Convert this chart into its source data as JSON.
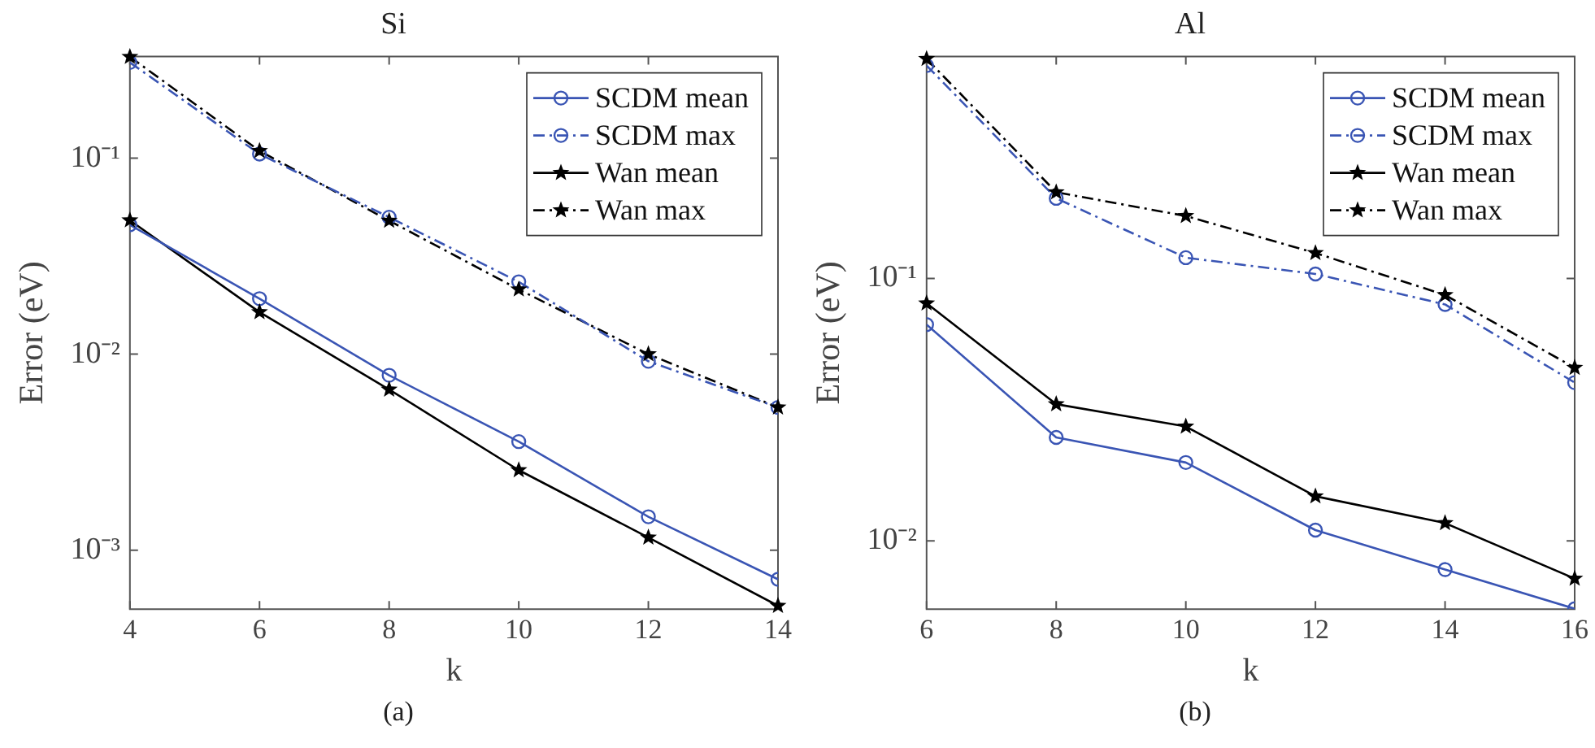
{
  "chart_data": [
    {
      "type": "line",
      "title": "Si",
      "xlabel": "k",
      "ylabel": "Error (eV)",
      "annotations": [
        "(a)"
      ],
      "x": [
        4,
        6,
        8,
        10,
        12,
        14
      ],
      "log": "y",
      "grid": false,
      "legend": "top right",
      "xlim": [
        4,
        14
      ],
      "xticks": [
        4,
        6,
        8,
        10,
        12,
        14
      ],
      "ylim": [
        0.0005,
        0.33
      ],
      "yticks": [
        {
          "value": 0.001,
          "label": "10⁻³"
        },
        {
          "value": 0.01,
          "label": "10⁻²"
        },
        {
          "value": 0.1,
          "label": "10⁻¹"
        }
      ],
      "series": [
        {
          "name": "SCDM mean",
          "color": "#3a55b4",
          "marker": "circle",
          "line_style": "solid",
          "values": [
            0.0457,
            0.0192,
            0.0078,
            0.00358,
            0.00148,
            0.00071
          ]
        },
        {
          "name": "SCDM max",
          "color": "#3a55b4",
          "marker": "circle",
          "line_style": "dashed",
          "values": [
            0.308,
            0.105,
            0.05,
            0.0234,
            0.0092,
            0.00535
          ]
        },
        {
          "name": "Wan mean",
          "color": "#000000",
          "marker": "star",
          "line_style": "solid",
          "values": [
            0.0482,
            0.0164,
            0.0066,
            0.00256,
            0.00116,
            0.00052
          ]
        },
        {
          "name": "Wan max",
          "color": "#000000",
          "marker": "star",
          "line_style": "dashed",
          "values": [
            0.329,
            0.109,
            0.048,
            0.0214,
            0.01,
            0.00535
          ]
        }
      ]
    },
    {
      "type": "line",
      "title": "Al",
      "xlabel": "k",
      "ylabel": "Error (eV)",
      "annotations": [
        "(b)"
      ],
      "x": [
        6,
        8,
        10,
        12,
        14,
        16
      ],
      "log": "y",
      "grid": false,
      "legend": "top right",
      "xlim": [
        6,
        16
      ],
      "xticks": [
        6,
        8,
        10,
        12,
        14,
        16
      ],
      "ylim": [
        0.0055,
        0.7
      ],
      "yticks": [
        {
          "value": 0.01,
          "label": "10⁻²"
        },
        {
          "value": 0.1,
          "label": "10⁻¹"
        }
      ],
      "series": [
        {
          "name": "SCDM mean",
          "color": "#3a55b4",
          "marker": "circle",
          "line_style": "solid",
          "values": [
            0.0667,
            0.0248,
            0.0199,
            0.011,
            0.00778,
            0.00552
          ]
        },
        {
          "name": "SCDM max",
          "color": "#3a55b4",
          "marker": "circle",
          "line_style": "dashed",
          "values": [
            0.647,
            0.202,
            0.12,
            0.104,
            0.0796,
            0.0401
          ]
        },
        {
          "name": "Wan mean",
          "color": "#000000",
          "marker": "star",
          "line_style": "solid",
          "values": [
            0.0804,
            0.0332,
            0.0273,
            0.0148,
            0.0117,
            0.00719
          ]
        },
        {
          "name": "Wan max",
          "color": "#000000",
          "marker": "star",
          "line_style": "dashed",
          "values": [
            0.686,
            0.213,
            0.173,
            0.125,
            0.0865,
            0.0457
          ]
        }
      ]
    }
  ]
}
